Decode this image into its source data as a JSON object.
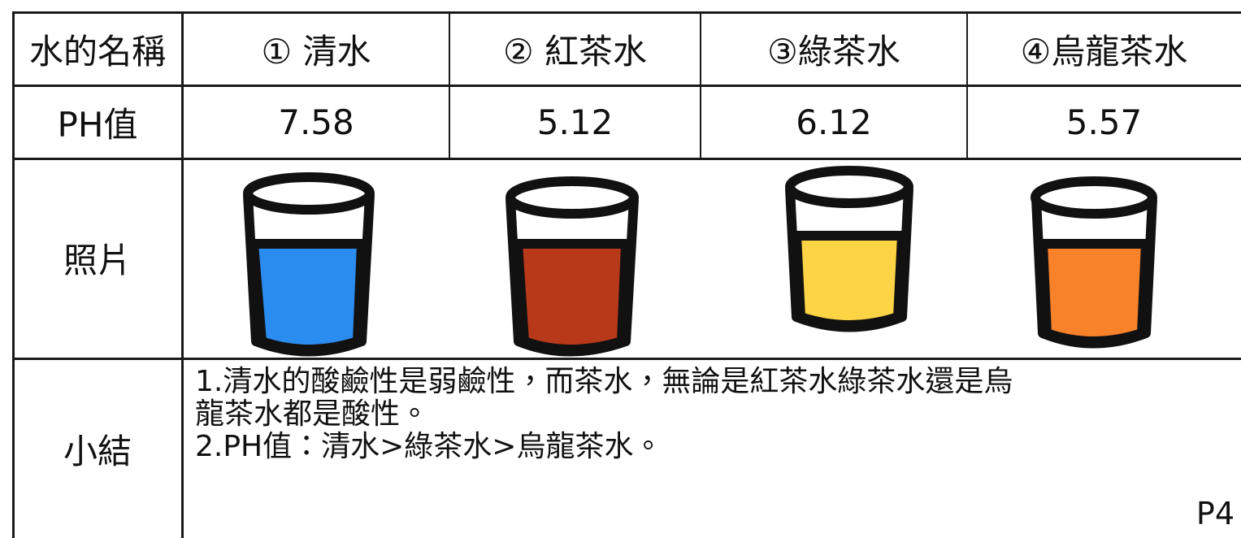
{
  "table": {
    "header": [
      "水的名稱",
      "① 清水",
      "② 紅茶水",
      "③綠茶水",
      "④烏龍茶水"
    ],
    "ph_row": [
      "PH值",
      "7.58",
      "5.12",
      "6.12",
      "5.57"
    ],
    "photo_row_label": "照片",
    "summary_row_label": "小結",
    "summary_lines": [
      "1.清水的酸鹼性是弱鹼性，而茶水，無論是紅茶水綠茶水還是烏",
      "龍茶水都是酸性。",
      "2.PH值：清水>綠茶水>烏龍茶水。"
    ]
  },
  "page_number": "P4"
}
